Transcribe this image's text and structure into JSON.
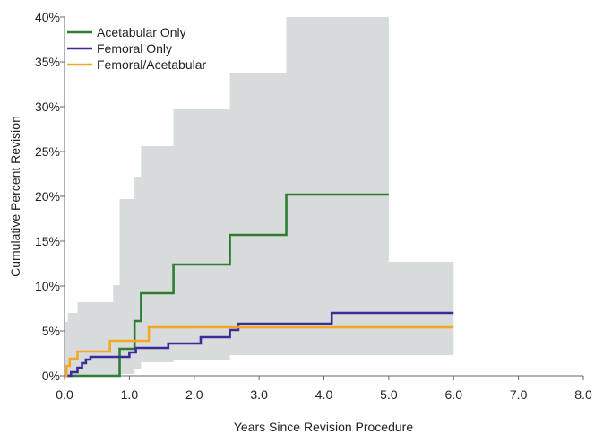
{
  "chart_data": {
    "type": "line",
    "step": true,
    "xlabel": "Years Since Revision Procedure",
    "ylabel": "Cumulative Percent Revision",
    "xlim": [
      0,
      8
    ],
    "ylim": [
      0,
      40
    ],
    "x_ticks": [
      0,
      1,
      2,
      3,
      4,
      5,
      6,
      7,
      8
    ],
    "x_tick_labels": [
      "0.0",
      "1.0",
      "2.0",
      "3.0",
      "4.0",
      "5.0",
      "6.0",
      "7.0",
      "8.0"
    ],
    "y_ticks": [
      0,
      5,
      10,
      15,
      20,
      25,
      30,
      35,
      40
    ],
    "y_tick_labels": [
      "0%",
      "5%",
      "10%",
      "15%",
      "20%",
      "25%",
      "30%",
      "35%",
      "40%"
    ],
    "grid": false,
    "legend_position": "top-left",
    "series": [
      {
        "name": "Acetabular Only",
        "color": "#2e7d32",
        "points": [
          [
            0,
            0
          ],
          [
            0.85,
            0
          ],
          [
            0.85,
            3.0
          ],
          [
            1.08,
            3.0
          ],
          [
            1.08,
            6.1
          ],
          [
            1.18,
            6.1
          ],
          [
            1.18,
            9.2
          ],
          [
            1.68,
            9.2
          ],
          [
            1.68,
            12.4
          ],
          [
            2.55,
            12.4
          ],
          [
            2.55,
            15.7
          ],
          [
            3.42,
            15.7
          ],
          [
            3.42,
            20.2
          ],
          [
            5.0,
            20.2
          ]
        ],
        "ci_band": {
          "color": "#d7dbdb",
          "x": [
            0,
            0.05,
            0.2,
            0.75,
            0.85,
            1.08,
            1.18,
            1.68,
            2.55,
            3.42,
            5.0,
            6.0
          ],
          "upper": [
            6.0,
            7.0,
            8.2,
            10.1,
            19.7,
            22.2,
            25.6,
            29.8,
            33.8,
            40.0,
            12.7,
            12.7
          ],
          "lower": [
            0,
            0,
            0,
            0,
            0.2,
            0.8,
            1.5,
            1.8,
            2.3,
            2.3,
            2.3,
            2.3
          ]
        }
      },
      {
        "name": "Femoral Only",
        "color": "#3a2d9a",
        "points": [
          [
            0,
            0
          ],
          [
            0.1,
            0
          ],
          [
            0.1,
            0.4
          ],
          [
            0.2,
            0.4
          ],
          [
            0.2,
            0.9
          ],
          [
            0.27,
            0.9
          ],
          [
            0.27,
            1.4
          ],
          [
            0.33,
            1.4
          ],
          [
            0.33,
            1.8
          ],
          [
            0.4,
            1.8
          ],
          [
            0.4,
            2.1
          ],
          [
            1.0,
            2.1
          ],
          [
            1.0,
            2.6
          ],
          [
            1.1,
            2.6
          ],
          [
            1.1,
            3.1
          ],
          [
            1.6,
            3.1
          ],
          [
            1.6,
            3.6
          ],
          [
            2.1,
            3.6
          ],
          [
            2.1,
            4.3
          ],
          [
            2.55,
            4.3
          ],
          [
            2.55,
            5.1
          ],
          [
            2.68,
            5.1
          ],
          [
            2.68,
            5.8
          ],
          [
            4.12,
            5.8
          ],
          [
            4.12,
            7.0
          ],
          [
            6.0,
            7.0
          ]
        ]
      },
      {
        "name": "Femoral/Acetabular",
        "color": "#f5a623",
        "points": [
          [
            0,
            0
          ],
          [
            0.03,
            0
          ],
          [
            0.03,
            1.1
          ],
          [
            0.08,
            1.1
          ],
          [
            0.08,
            1.9
          ],
          [
            0.2,
            1.9
          ],
          [
            0.2,
            2.7
          ],
          [
            0.7,
            2.7
          ],
          [
            0.7,
            3.9
          ],
          [
            1.3,
            3.9
          ],
          [
            1.3,
            5.4
          ],
          [
            6.0,
            5.4
          ]
        ]
      }
    ]
  }
}
